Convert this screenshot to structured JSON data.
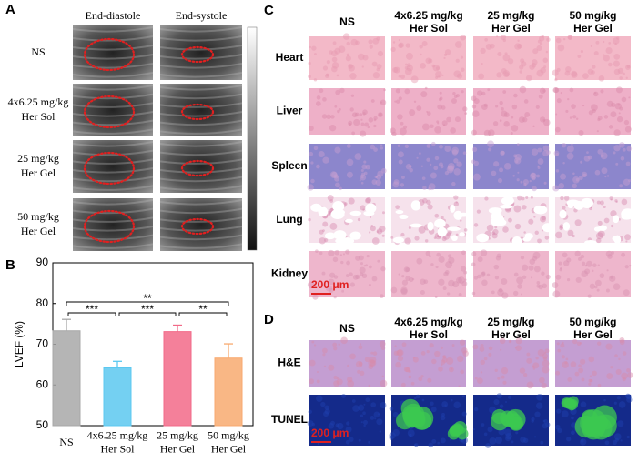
{
  "panel_a": {
    "label": "A",
    "columns": [
      "End-diastole",
      "End-systole"
    ],
    "rows": [
      [
        "NS"
      ],
      [
        "4x6.25 mg/kg",
        "Her Sol"
      ],
      [
        "25 mg/kg",
        "Her Gel"
      ],
      [
        "50 mg/kg",
        "Her Gel"
      ]
    ]
  },
  "chart_data": {
    "type": "bar",
    "panel_label": "B",
    "y_label": "LVEF (%)",
    "categories": [
      [
        "NS"
      ],
      [
        "4x6.25 mg/kg",
        "Her Sol"
      ],
      [
        "25 mg/kg",
        "Her Gel"
      ],
      [
        "50 mg/kg",
        "Her Gel"
      ]
    ],
    "values": [
      73.3,
      64.2,
      73.1,
      66.6
    ],
    "errors": [
      2.8,
      1.6,
      1.6,
      3.5
    ],
    "colors": [
      "#a8a8a8",
      "#5cc8f0",
      "#f26a88",
      "#f8aa70"
    ],
    "ylim": [
      50,
      90
    ],
    "yticks": [
      50,
      60,
      70,
      80,
      90
    ],
    "significance": [
      "***",
      "***",
      "**",
      "**"
    ]
  },
  "panel_c": {
    "label": "C",
    "columns": [
      [
        "NS"
      ],
      [
        "4x6.25 mg/kg",
        "Her Sol"
      ],
      [
        "25 mg/kg",
        "Her Gel"
      ],
      [
        "50 mg/kg",
        "Her Gel"
      ]
    ],
    "rows": [
      "Heart",
      "Liver",
      "Spleen",
      "Lung",
      "Kidney"
    ],
    "scale_bar": "200 μm"
  },
  "panel_d": {
    "label": "D",
    "columns": [
      [
        "NS"
      ],
      [
        "4x6.25 mg/kg",
        "Her Sol"
      ],
      [
        "25 mg/kg",
        "Her Gel"
      ],
      [
        "50 mg/kg",
        "Her Gel"
      ]
    ],
    "rows": [
      "H&E",
      "TUNEL"
    ],
    "scale_bar": "200 μm"
  }
}
